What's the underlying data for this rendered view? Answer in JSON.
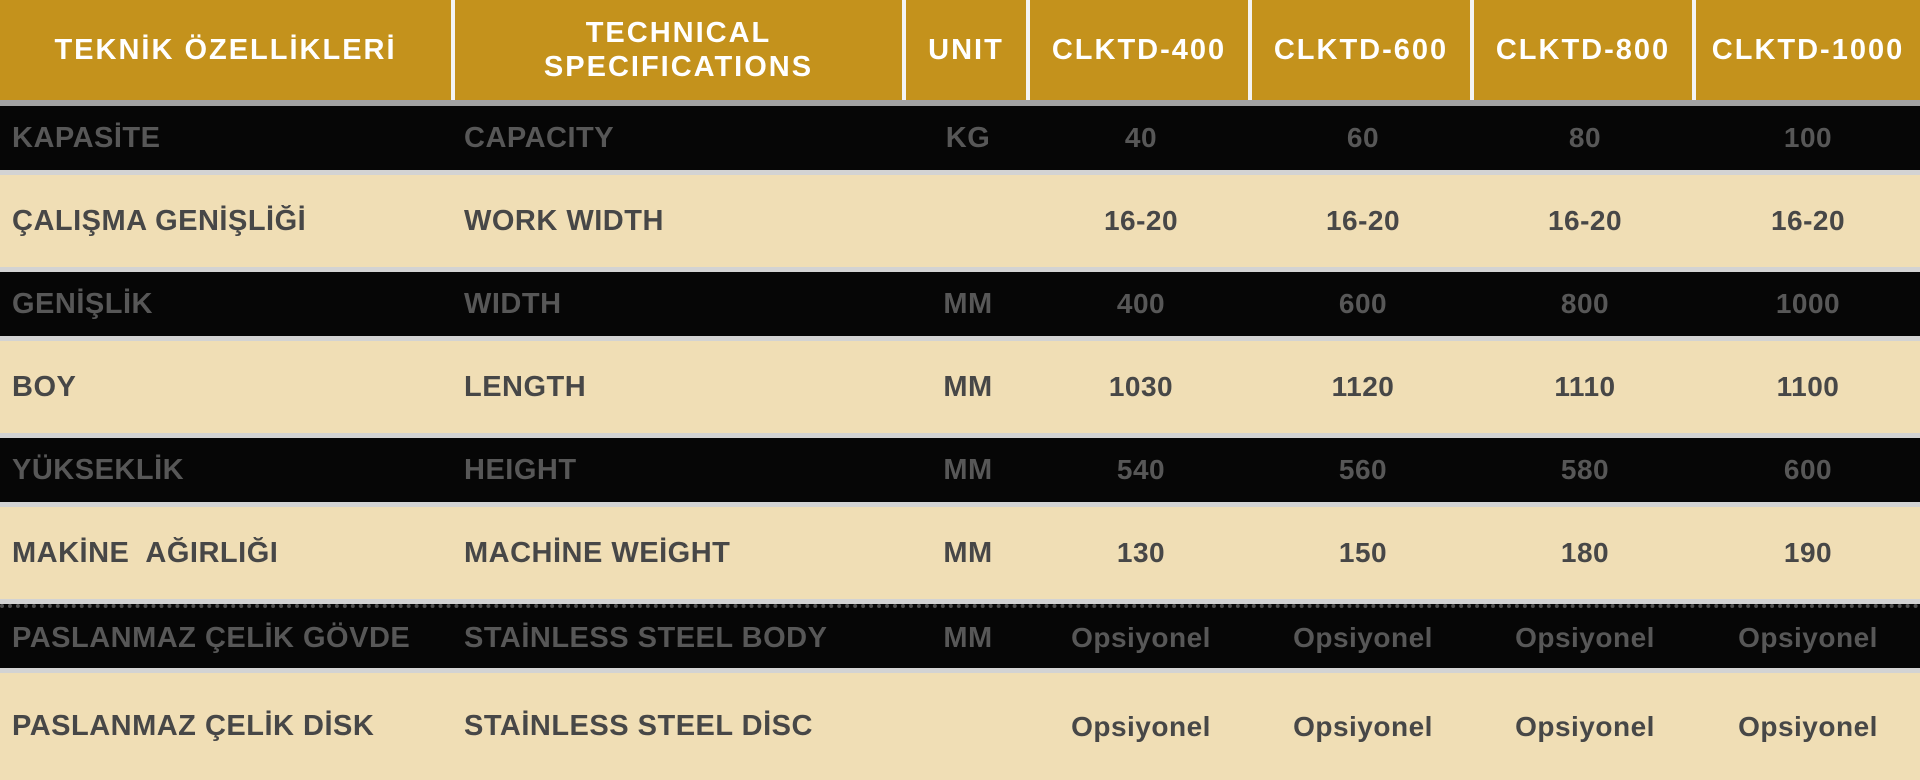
{
  "colors": {
    "header_background": "#C4921C",
    "header_text": "#FFFFFF",
    "light_row_background": "#F0DEB5",
    "light_row_text": "#474747",
    "dark_row_background": "#060606",
    "dark_row_text": "#575757",
    "separator_line": "#D3D3D3"
  },
  "table": {
    "header": {
      "tr_column": "TEKNİK ÖZELLİKLERİ",
      "en_column": "TECHNICAL\nSPECIFICATIONS",
      "unit_column": "UNIT",
      "models": [
        "CLKTD-400",
        "CLKTD-600",
        "CLKTD-800",
        "CLKTD-1000"
      ]
    },
    "rows": [
      {
        "tr": "KAPASİTE",
        "en": "CAPACITY",
        "unit": "KG",
        "values": [
          "40",
          "60",
          "80",
          "100"
        ]
      },
      {
        "tr": "ÇALIŞMA GENİŞLİĞİ",
        "en": "WORK WIDTH",
        "unit": "",
        "values": [
          "16-20",
          "16-20",
          "16-20",
          "16-20"
        ]
      },
      {
        "tr": "GENİŞLİK",
        "en": "WIDTH",
        "unit": "MM",
        "values": [
          "400",
          "600",
          "800",
          "1000"
        ]
      },
      {
        "tr": "BOY",
        "en": "LENGTH",
        "unit": "MM",
        "values": [
          "1030",
          "1120",
          "1110",
          "1100"
        ]
      },
      {
        "tr": "YÜKSEKLİK",
        "en": "HEIGHT",
        "unit": "MM",
        "values": [
          "540",
          "560",
          "580",
          "600"
        ]
      },
      {
        "tr": "MAKİNE  AĞIRLIĞI",
        "en": "MACHİNE WEİGHT",
        "unit": "MM",
        "values": [
          "130",
          "150",
          "180",
          "190"
        ]
      },
      {
        "tr": "PASLANMAZ ÇELİK GÖVDE",
        "en": "STAİNLESS STEEL BODY",
        "unit": "MM",
        "values": [
          "Opsiyonel",
          "Opsiyonel",
          "Opsiyonel",
          "Opsiyonel"
        ]
      },
      {
        "tr": "PASLANMAZ ÇELİK DİSK",
        "en": "STAİNLESS STEEL DİSC",
        "unit": "",
        "values": [
          "Opsiyonel",
          "Opsiyonel",
          "Opsiyonel",
          "Opsiyonel"
        ]
      }
    ]
  }
}
